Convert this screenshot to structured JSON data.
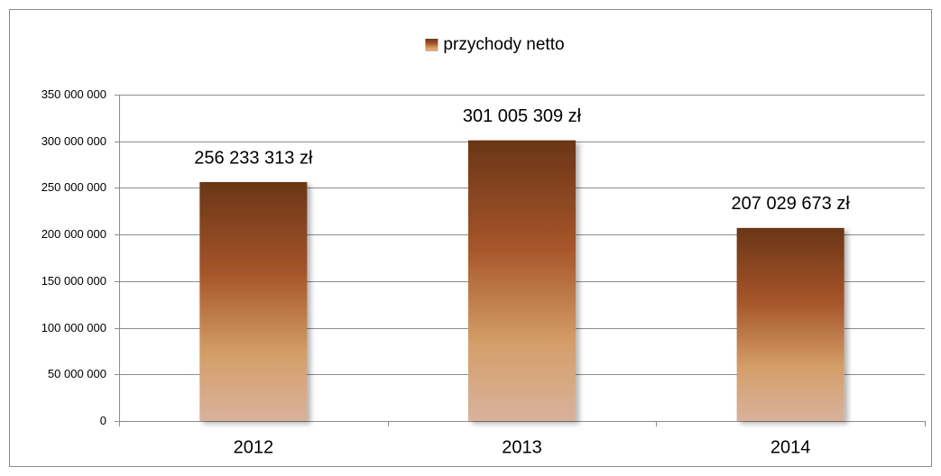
{
  "chart_data": {
    "type": "bar",
    "categories": [
      "2012",
      "2013",
      "2014"
    ],
    "series": [
      {
        "name": "przychody netto",
        "values": [
          256233313,
          301005309,
          207029673
        ],
        "value_labels": [
          "256 233 313 zł",
          "301 005 309 zł",
          "207 029 673 zł"
        ]
      }
    ],
    "ylim": [
      0,
      350000000
    ],
    "yticks": [
      0,
      {
        "value": 50000000,
        "label": "50 000 000"
      },
      {
        "value": 100000000,
        "label": "100 000 000"
      },
      {
        "value": 150000000,
        "label": "150 000 000"
      },
      {
        "value": 200000000,
        "label": "200 000 000"
      },
      {
        "value": 250000000,
        "label": "250 000 000"
      },
      {
        "value": 300000000,
        "label": "300 000 000"
      },
      {
        "value": 350000000,
        "label": "350 000 000"
      }
    ],
    "grid": true,
    "legend": "top"
  }
}
